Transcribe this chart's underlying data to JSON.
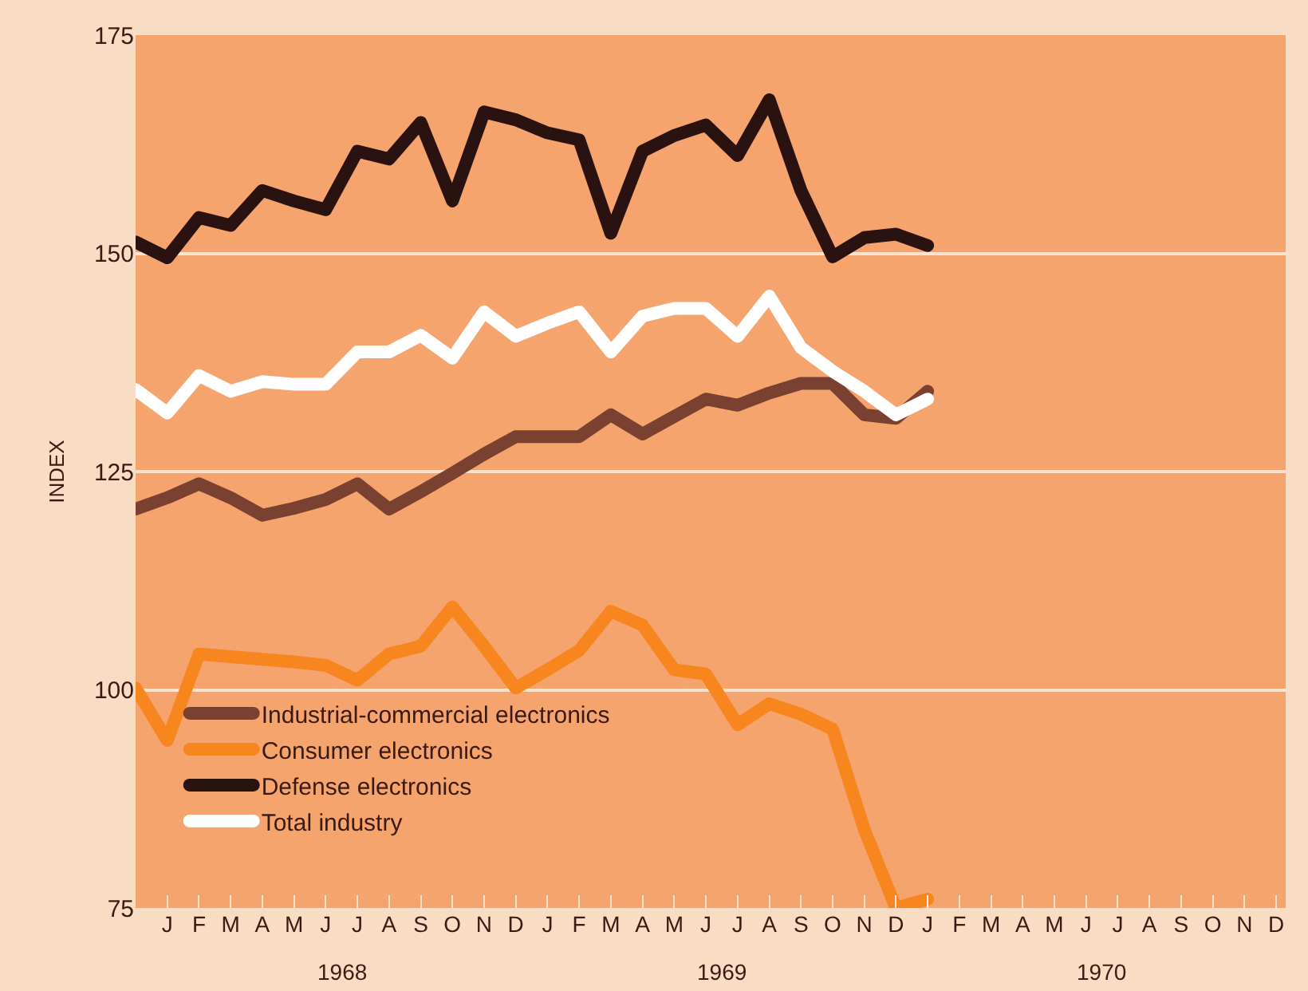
{
  "chart_data": {
    "type": "line",
    "ylabel": "INDEX",
    "categories": [
      null,
      "J",
      "F",
      "M",
      "A",
      "M",
      "J",
      "J",
      "A",
      "S",
      "O",
      "N",
      "D",
      "J",
      "F",
      "M",
      "A",
      "M",
      "J",
      "J",
      "A",
      "S",
      "O",
      "N",
      "D",
      "J",
      "F",
      "M",
      "A",
      "M",
      "J",
      "J",
      "A",
      "S",
      "O",
      "N",
      "D"
    ],
    "series": [
      {
        "name": "Industrial-commercial electronics",
        "color": "#7a4030",
        "values": [
          120.7,
          122,
          123.6,
          122,
          120,
          120.8,
          121.8,
          123.6,
          120.7,
          122.7,
          124.8,
          127,
          129,
          129,
          129,
          131.5,
          129.3,
          131.3,
          133.3,
          132.6,
          134,
          135.1,
          135.1,
          131.5,
          131.1,
          134.2,
          null,
          null,
          null,
          null,
          null,
          null,
          null,
          null,
          null,
          null,
          null
        ]
      },
      {
        "name": "Consumer electronics",
        "color": "#f7861f",
        "values": [
          100.2,
          94.2,
          104.1,
          103.8,
          103.5,
          103.2,
          102.8,
          101.1,
          104.1,
          105,
          109.5,
          105,
          100.2,
          102.3,
          104.5,
          109,
          107.4,
          102.3,
          101.8,
          96,
          98.4,
          97.2,
          95.5,
          84,
          75,
          76,
          null,
          null,
          null,
          null,
          null,
          null,
          null,
          null,
          null,
          null,
          null
        ]
      },
      {
        "name": "Defense electronics",
        "color": "#2a1210",
        "values": [
          151.3,
          149.5,
          154.1,
          153.2,
          157.2,
          156,
          155,
          161.7,
          160.8,
          165,
          156,
          166.2,
          165.3,
          163.8,
          163,
          152.3,
          161.7,
          163.5,
          164.7,
          161.2,
          167.6,
          157.2,
          149.6,
          151.8,
          152.2,
          150.9,
          null,
          null,
          null,
          null,
          null,
          null,
          null,
          null,
          null,
          null,
          null
        ]
      },
      {
        "name": "Total industry",
        "color": "#ffffff",
        "values": [
          134.4,
          131.7,
          136,
          134.2,
          135.3,
          135,
          135,
          138.7,
          138.7,
          140.6,
          138,
          143.3,
          140.5,
          142,
          143.3,
          138.7,
          142.8,
          143.7,
          143.7,
          140.5,
          145.1,
          139.2,
          136.5,
          134.2,
          131.5,
          133.3,
          null,
          null,
          null,
          null,
          null,
          null,
          null,
          null,
          null,
          null,
          null
        ]
      }
    ],
    "annotations": [
      "1968",
      "1969",
      "1970"
    ],
    "ylim": [
      75,
      175
    ],
    "yticks": [
      75,
      100,
      125,
      150,
      175
    ],
    "grid": "y",
    "legend": "bottom left",
    "line_style": "solid"
  }
}
